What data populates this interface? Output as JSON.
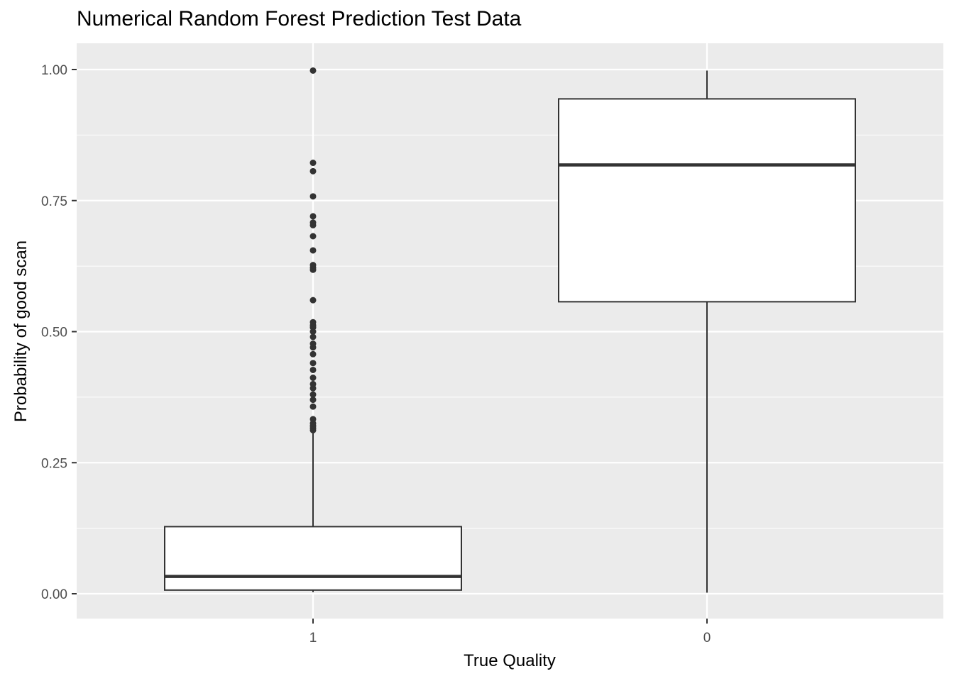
{
  "chart_data": {
    "type": "box",
    "title": "Numerical Random Forest Prediction Test Data",
    "xlabel": "True Quality",
    "ylabel": "Probability of good scan",
    "ylim": [
      -0.048,
      1.05
    ],
    "yticks": [
      0.0,
      0.25,
      0.5,
      0.75,
      1.0
    ],
    "ytick_labels": [
      "0.00",
      "0.25",
      "0.50",
      "0.75",
      "1.00"
    ],
    "categories": [
      "1",
      "0"
    ],
    "grid": true,
    "colors": {
      "panel": "#ebebeb",
      "grid": "#ffffff",
      "box_fill": "#ffffff",
      "stroke": "#333333"
    },
    "boxes": [
      {
        "category": "1",
        "min": 0.003,
        "q1": 0.007,
        "median": 0.033,
        "q3": 0.128,
        "max": 0.31,
        "outliers": [
          0.312,
          0.316,
          0.32,
          0.325,
          0.333,
          0.357,
          0.37,
          0.38,
          0.392,
          0.4,
          0.412,
          0.427,
          0.44,
          0.457,
          0.47,
          0.477,
          0.49,
          0.5,
          0.508,
          0.512,
          0.518,
          0.56,
          0.618,
          0.622,
          0.627,
          0.655,
          0.682,
          0.703,
          0.708,
          0.72,
          0.758,
          0.806,
          0.822,
          0.998
        ]
      },
      {
        "category": "0",
        "min": 0.002,
        "q1": 0.557,
        "median": 0.818,
        "q3": 0.944,
        "max": 0.998,
        "outliers": []
      }
    ]
  }
}
